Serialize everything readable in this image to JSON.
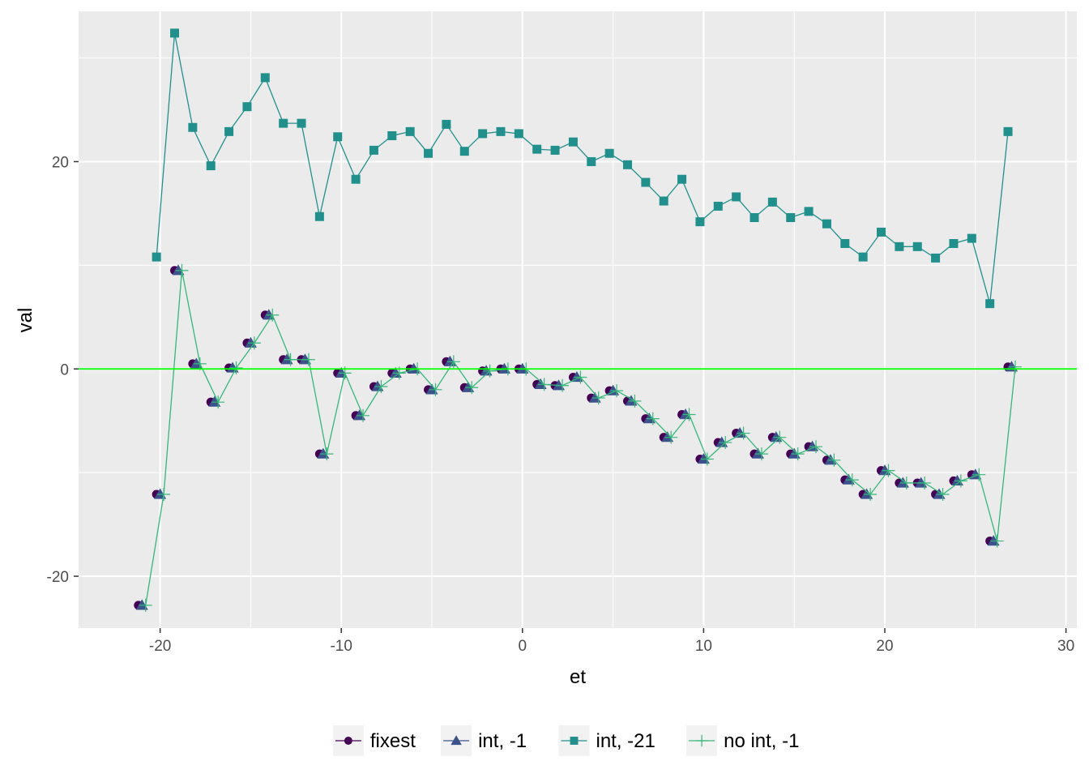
{
  "chart_data": {
    "type": "line",
    "xlabel": "et",
    "ylabel": "val",
    "xlim": [
      -24.5,
      30.6
    ],
    "ylim": [
      -25,
      34.5
    ],
    "x_ticks": [
      -20,
      -10,
      0,
      10,
      20,
      30
    ],
    "x_tick_labels": [
      "-20",
      "-10",
      "0",
      "10",
      "20",
      "30"
    ],
    "y_ticks": [
      -20,
      0,
      20
    ],
    "y_tick_labels": [
      "-20",
      "0",
      "20"
    ],
    "grid": true,
    "background": "#ebebeb",
    "hline": {
      "y": 0,
      "color": "#00ff00"
    },
    "legend_position": "bottom",
    "series": [
      {
        "name": "fixest",
        "color": "#440154",
        "marker": "circle",
        "offset": -0.2,
        "line": false,
        "x": [
          -21,
          -20,
          -19,
          -18,
          -17,
          -16,
          -15,
          -14,
          -13,
          -12,
          -11,
          -10,
          -9,
          -8,
          -7,
          -6,
          -5,
          -4,
          -3,
          -2,
          -1,
          0,
          1,
          2,
          3,
          4,
          5,
          6,
          7,
          8,
          9,
          10,
          11,
          12,
          13,
          14,
          15,
          16,
          17,
          18,
          19,
          20,
          21,
          22,
          23,
          24,
          25,
          26,
          27
        ],
        "values": [
          -22.8,
          -12.1,
          9.5,
          0.5,
          -3.2,
          0.1,
          2.5,
          5.2,
          0.9,
          0.9,
          -8.2,
          -0.4,
          -4.5,
          -1.7,
          -0.4,
          0.0,
          -2.0,
          0.7,
          -1.8,
          -0.2,
          0.0,
          0.0,
          -1.5,
          -1.6,
          -0.8,
          -2.8,
          -2.1,
          -3.1,
          -4.8,
          -6.6,
          -4.4,
          -8.7,
          -7.1,
          -6.2,
          -8.2,
          -6.6,
          -8.2,
          -7.5,
          -8.8,
          -10.7,
          -12.1,
          -9.8,
          -11.0,
          -11.0,
          -12.1,
          -10.8,
          -10.2,
          -16.6,
          0.2
        ]
      },
      {
        "name": "int, -1",
        "color": "#3b528b",
        "marker": "triangle",
        "offset": 0.0,
        "line": false,
        "x": [
          -21,
          -20,
          -19,
          -18,
          -17,
          -16,
          -15,
          -14,
          -13,
          -12,
          -11,
          -10,
          -9,
          -8,
          -7,
          -6,
          -5,
          -4,
          -3,
          -2,
          -1,
          0,
          1,
          2,
          3,
          4,
          5,
          6,
          7,
          8,
          9,
          10,
          11,
          12,
          13,
          14,
          15,
          16,
          17,
          18,
          19,
          20,
          21,
          22,
          23,
          24,
          25,
          26,
          27
        ],
        "values": [
          -22.8,
          -12.1,
          9.5,
          0.5,
          -3.2,
          0.1,
          2.5,
          5.2,
          0.9,
          0.9,
          -8.2,
          -0.4,
          -4.5,
          -1.7,
          -0.4,
          0.0,
          -2.0,
          0.7,
          -1.8,
          -0.2,
          0.0,
          0.0,
          -1.5,
          -1.6,
          -0.8,
          -2.8,
          -2.1,
          -3.1,
          -4.8,
          -6.6,
          -4.4,
          -8.7,
          -7.1,
          -6.2,
          -8.2,
          -6.6,
          -8.2,
          -7.5,
          -8.8,
          -10.7,
          -12.1,
          -9.8,
          -11.0,
          -11.0,
          -12.1,
          -10.8,
          -10.2,
          -16.6,
          0.2
        ]
      },
      {
        "name": "int, -21",
        "color": "#21908c",
        "marker": "square",
        "offset": -0.2,
        "line": true,
        "x": [
          -20,
          -19,
          -18,
          -17,
          -16,
          -15,
          -14,
          -13,
          -12,
          -11,
          -10,
          -9,
          -8,
          -7,
          -6,
          -5,
          -4,
          -3,
          -2,
          -1,
          0,
          1,
          2,
          3,
          4,
          5,
          6,
          7,
          8,
          9,
          10,
          11,
          12,
          13,
          14,
          15,
          16,
          17,
          18,
          19,
          20,
          21,
          22,
          23,
          24,
          25,
          26,
          27
        ],
        "values": [
          10.8,
          32.4,
          23.3,
          19.6,
          22.9,
          25.3,
          28.1,
          23.7,
          23.7,
          14.7,
          22.4,
          18.3,
          21.1,
          22.5,
          22.9,
          20.8,
          23.6,
          21.0,
          22.7,
          22.9,
          22.7,
          21.2,
          21.1,
          21.9,
          20.0,
          20.8,
          19.7,
          18.0,
          16.2,
          18.3,
          14.2,
          15.7,
          16.6,
          14.6,
          16.1,
          14.6,
          15.2,
          14.0,
          12.1,
          10.8,
          13.2,
          11.8,
          11.8,
          10.7,
          12.1,
          12.6,
          6.3,
          22.9
        ]
      },
      {
        "name": "no int, -1",
        "color": "#35b779",
        "marker": "plus",
        "offset": 0.2,
        "line": true,
        "x": [
          -21,
          -20,
          -19,
          -18,
          -17,
          -16,
          -15,
          -14,
          -13,
          -12,
          -11,
          -10,
          -9,
          -8,
          -7,
          -6,
          -5,
          -4,
          -3,
          -2,
          -1,
          0,
          1,
          2,
          3,
          4,
          5,
          6,
          7,
          8,
          9,
          10,
          11,
          12,
          13,
          14,
          15,
          16,
          17,
          18,
          19,
          20,
          21,
          22,
          23,
          24,
          25,
          26,
          27
        ],
        "values": [
          -22.8,
          -12.1,
          9.5,
          0.5,
          -3.2,
          0.1,
          2.5,
          5.2,
          0.9,
          0.9,
          -8.2,
          -0.4,
          -4.5,
          -1.7,
          -0.4,
          0.0,
          -2.0,
          0.7,
          -1.8,
          -0.2,
          0.0,
          0.0,
          -1.5,
          -1.6,
          -0.8,
          -2.8,
          -2.1,
          -3.1,
          -4.8,
          -6.6,
          -4.4,
          -8.7,
          -7.1,
          -6.2,
          -8.2,
          -6.6,
          -8.2,
          -7.5,
          -8.8,
          -10.7,
          -12.1,
          -9.8,
          -11.0,
          -11.0,
          -12.1,
          -10.8,
          -10.2,
          -16.6,
          0.2
        ]
      }
    ]
  }
}
